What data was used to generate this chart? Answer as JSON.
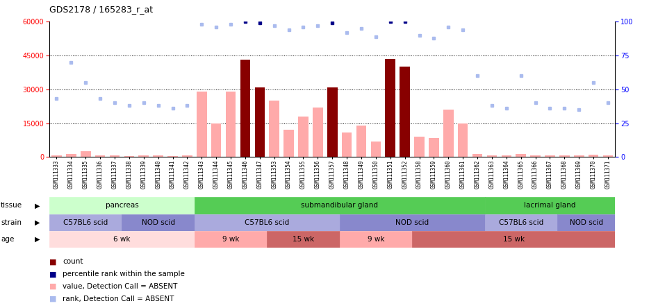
{
  "title": "GDS2178 / 165283_r_at",
  "samples": [
    "GSM111333",
    "GSM111334",
    "GSM111335",
    "GSM111336",
    "GSM111337",
    "GSM111338",
    "GSM111339",
    "GSM111340",
    "GSM111341",
    "GSM111342",
    "GSM111343",
    "GSM111344",
    "GSM111345",
    "GSM111346",
    "GSM111347",
    "GSM111353",
    "GSM111354",
    "GSM111355",
    "GSM111356",
    "GSM111357",
    "GSM111348",
    "GSM111349",
    "GSM111350",
    "GSM111351",
    "GSM111352",
    "GSM111358",
    "GSM111359",
    "GSM111360",
    "GSM111361",
    "GSM111362",
    "GSM111363",
    "GSM111364",
    "GSM111365",
    "GSM111366",
    "GSM111367",
    "GSM111368",
    "GSM111369",
    "GSM111370",
    "GSM111371"
  ],
  "values": [
    800,
    1500,
    2500,
    800,
    600,
    500,
    700,
    600,
    500,
    600,
    29000,
    15000,
    29000,
    43000,
    31000,
    25000,
    12000,
    18000,
    22000,
    31000,
    11000,
    14000,
    7000,
    43500,
    40000,
    9000,
    8500,
    21000,
    15000,
    1500,
    600,
    600,
    1500,
    800,
    600,
    600,
    600,
    1200,
    800
  ],
  "is_present": [
    false,
    false,
    false,
    false,
    false,
    false,
    false,
    false,
    false,
    false,
    false,
    false,
    false,
    true,
    true,
    false,
    false,
    false,
    false,
    true,
    false,
    false,
    false,
    true,
    true,
    false,
    false,
    false,
    false,
    false,
    false,
    false,
    false,
    false,
    false,
    false,
    false,
    false,
    false
  ],
  "ranks": [
    43,
    70,
    55,
    43,
    40,
    38,
    40,
    38,
    36,
    38,
    98,
    96,
    98,
    100,
    99,
    97,
    94,
    96,
    97,
    99,
    92,
    95,
    89,
    100,
    100,
    90,
    88,
    96,
    94,
    60,
    38,
    36,
    60,
    40,
    36,
    36,
    35,
    55,
    40
  ],
  "percentile_present": [
    false,
    false,
    false,
    false,
    false,
    false,
    false,
    false,
    false,
    false,
    false,
    false,
    false,
    true,
    true,
    false,
    false,
    false,
    false,
    true,
    false,
    false,
    false,
    true,
    true,
    false,
    false,
    false,
    false,
    false,
    false,
    false,
    false,
    false,
    false,
    false,
    false,
    false,
    false
  ],
  "tissue_groups": [
    {
      "label": "pancreas",
      "start": 0,
      "end": 10,
      "color": "#ccffcc"
    },
    {
      "label": "submandibular gland",
      "start": 10,
      "end": 30,
      "color": "#55cc55"
    },
    {
      "label": "lacrimal gland",
      "start": 30,
      "end": 39,
      "color": "#55cc55"
    }
  ],
  "strain_groups": [
    {
      "label": "C57BL6 scid",
      "start": 0,
      "end": 5,
      "color": "#aaaadd"
    },
    {
      "label": "NOD scid",
      "start": 5,
      "end": 10,
      "color": "#8888cc"
    },
    {
      "label": "C57BL6 scid",
      "start": 10,
      "end": 20,
      "color": "#aaaadd"
    },
    {
      "label": "NOD scid",
      "start": 20,
      "end": 30,
      "color": "#8888cc"
    },
    {
      "label": "C57BL6 scid",
      "start": 30,
      "end": 35,
      "color": "#aaaadd"
    },
    {
      "label": "NOD scid",
      "start": 35,
      "end": 39,
      "color": "#8888cc"
    }
  ],
  "age_groups": [
    {
      "label": "6 wk",
      "start": 0,
      "end": 10,
      "color": "#ffdddd"
    },
    {
      "label": "9 wk",
      "start": 10,
      "end": 15,
      "color": "#ffaaaa"
    },
    {
      "label": "15 wk",
      "start": 15,
      "end": 20,
      "color": "#cc6666"
    },
    {
      "label": "9 wk",
      "start": 20,
      "end": 25,
      "color": "#ffaaaa"
    },
    {
      "label": "15 wk",
      "start": 25,
      "end": 39,
      "color": "#cc6666"
    }
  ],
  "ylim_left": [
    0,
    60000
  ],
  "ylim_right": [
    0,
    100
  ],
  "yticks_left": [
    0,
    15000,
    30000,
    45000,
    60000
  ],
  "yticks_right": [
    0,
    25,
    50,
    75,
    100
  ],
  "bar_color_absent": "#ffaaaa",
  "bar_color_present": "#880000",
  "rank_color_absent": "#aabbee",
  "rank_color_present": "#000088",
  "legend_items": [
    {
      "label": "count",
      "color": "#880000"
    },
    {
      "label": "percentile rank within the sample",
      "color": "#000088"
    },
    {
      "label": "value, Detection Call = ABSENT",
      "color": "#ffaaaa"
    },
    {
      "label": "rank, Detection Call = ABSENT",
      "color": "#aabbee"
    }
  ]
}
